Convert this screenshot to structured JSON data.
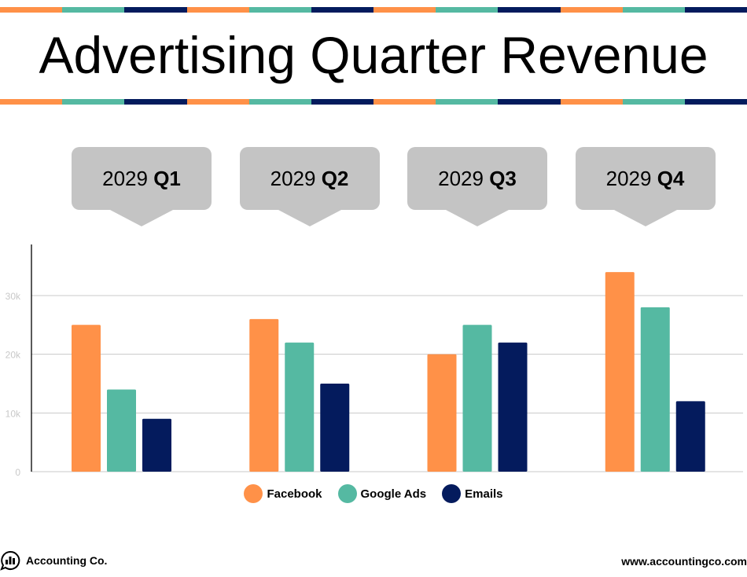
{
  "title": "Advertising Quarter Revenue",
  "stripe_colors": [
    "#ff9148",
    "#55b9a2",
    "#041b5d"
  ],
  "footer": {
    "brand": "Accounting Co.",
    "website": "www.accountingco.com",
    "logo_icon": "chat-bubble-bar-chart-icon"
  },
  "chart_data": {
    "type": "bar",
    "categories": [
      {
        "year": "2029",
        "quarter": "Q1"
      },
      {
        "year": "2029",
        "quarter": "Q2"
      },
      {
        "year": "2029",
        "quarter": "Q3"
      },
      {
        "year": "2029",
        "quarter": "Q4"
      }
    ],
    "series": [
      {
        "name": "Facebook",
        "color": "#ff9148",
        "values": [
          25000,
          26000,
          20000,
          34000
        ]
      },
      {
        "name": "Google Ads",
        "color": "#55b9a2",
        "values": [
          14000,
          22000,
          25000,
          28000
        ]
      },
      {
        "name": "Emails",
        "color": "#041b5d",
        "values": [
          9000,
          15000,
          22000,
          12000
        ]
      }
    ],
    "yticks": [
      "0",
      "10k",
      "20k",
      "30k"
    ],
    "ytick_values": [
      0,
      10000,
      20000,
      30000
    ],
    "ylim": [
      0,
      38700
    ],
    "grid": true,
    "legend": "bottom"
  }
}
